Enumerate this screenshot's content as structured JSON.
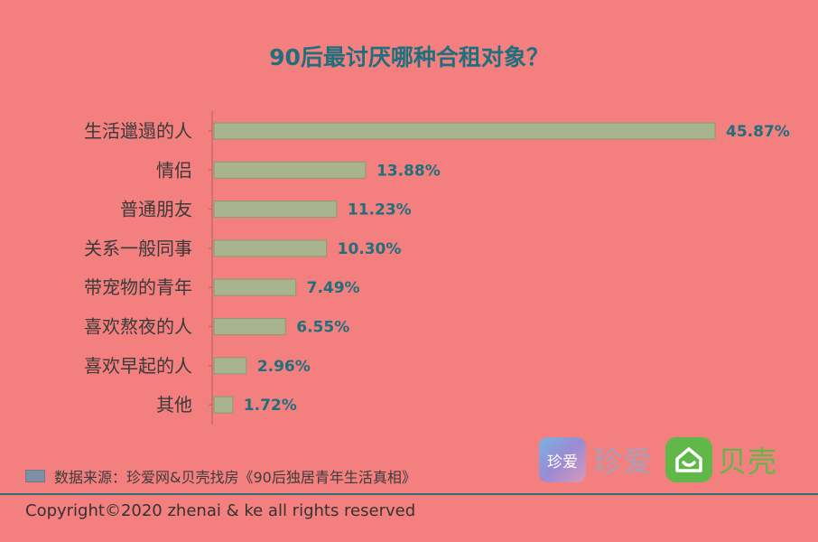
{
  "chart_data": {
    "type": "bar",
    "orientation": "horizontal",
    "title": "90后最讨厌哪种合租对象？",
    "categories": [
      "生活邋遢的人",
      "情侣",
      "普通朋友",
      "关系一般同事",
      "带宠物的青年",
      "喜欢熬夜的人",
      "喜欢早起的人",
      "其他"
    ],
    "values": [
      45.87,
      13.88,
      11.23,
      10.3,
      7.49,
      6.55,
      2.96,
      1.72
    ],
    "value_labels": [
      "45.87%",
      "13.88%",
      "11.23%",
      "10.30%",
      "7.49%",
      "6.55%",
      "2.96%",
      "1.72%"
    ],
    "unit": "%",
    "xlim": [
      0,
      50
    ],
    "grid": false,
    "colors": {
      "bar_fill": "#a7b48d",
      "bar_stroke": "#8a9a73",
      "value_label": "#1f6f7d",
      "category_label": "#3a3a3a",
      "axis": "#c96a6a"
    }
  },
  "footer": {
    "source": "数据来源：珍爱网&贝壳找房《90后独居青年生活真相》",
    "copyright": "Copyright©2020 zhenai & ke all rights reserved"
  },
  "logos": {
    "zhenai_icon_text": "珍爱",
    "zhenai_text": "珍爱",
    "ke_text": "贝壳"
  }
}
